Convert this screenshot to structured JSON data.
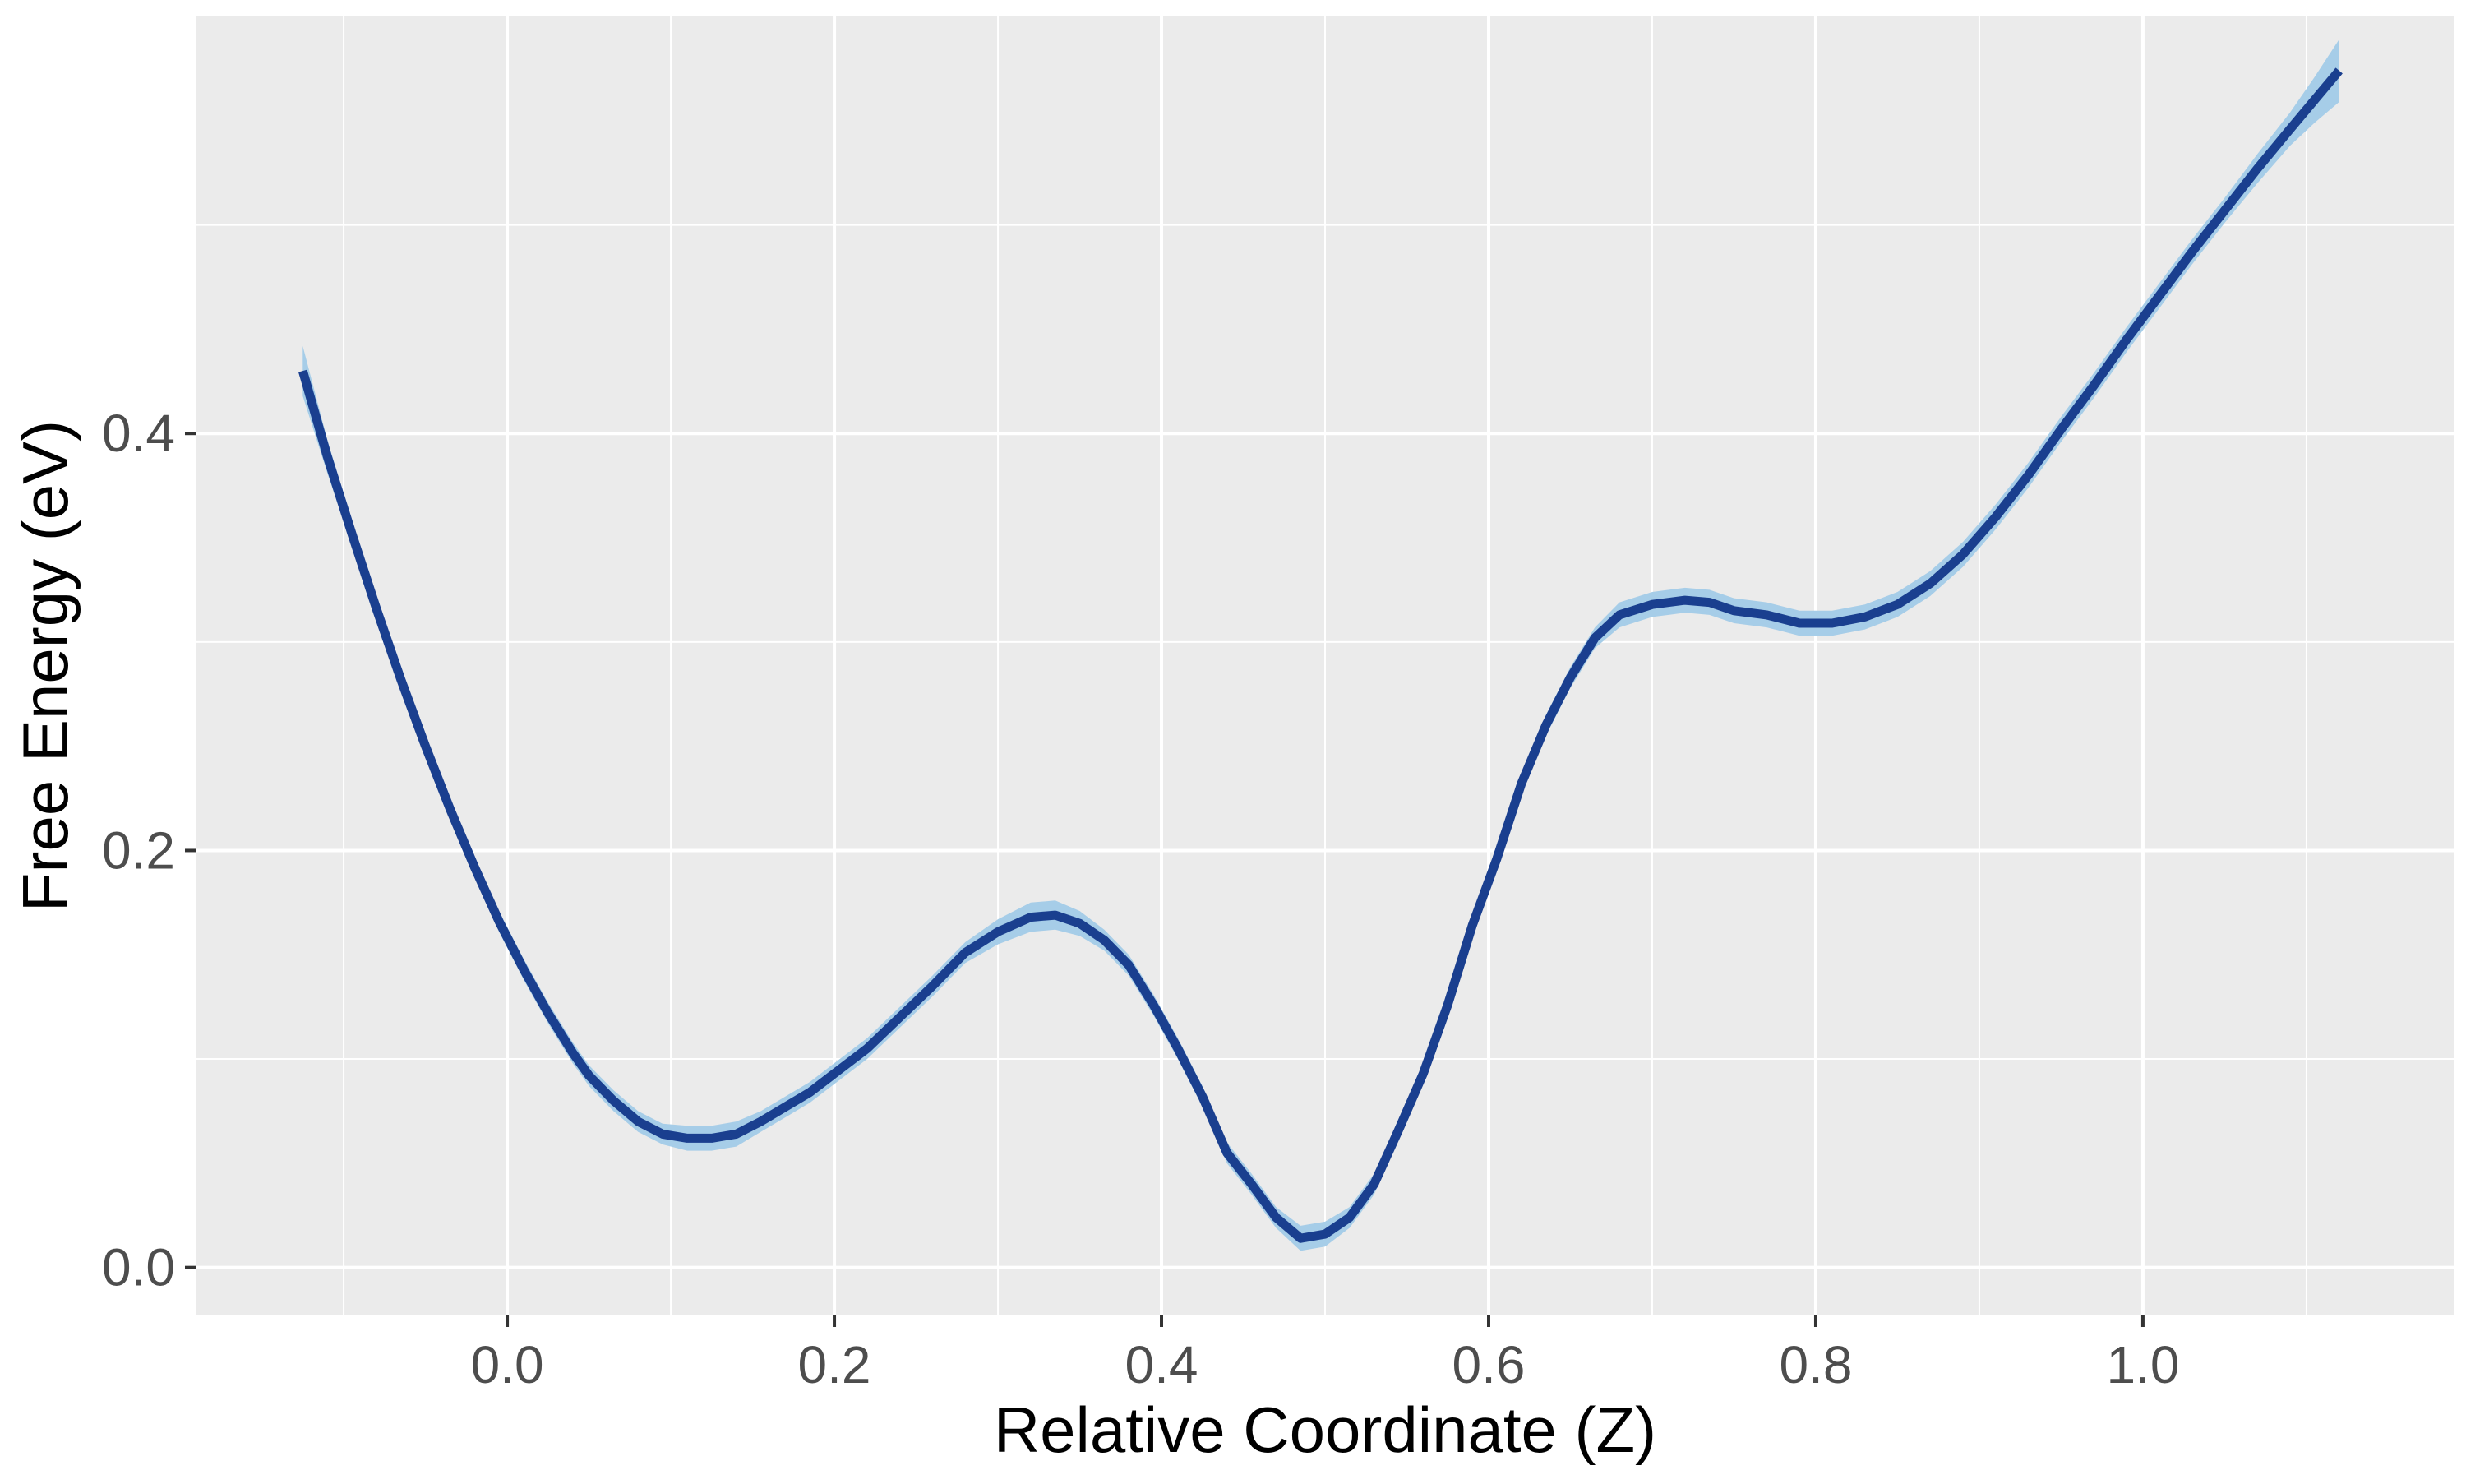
{
  "chart_data": {
    "type": "line",
    "xlabel": "Relative Coordinate (Z)",
    "ylabel": "Free Energy (eV)",
    "xlim": [
      -0.19,
      1.19
    ],
    "ylim": [
      -0.023,
      0.6
    ],
    "x_ticks": [
      0.0,
      0.2,
      0.4,
      0.6,
      0.8,
      1.0
    ],
    "x_tick_labels": [
      "0.0",
      "0.2",
      "0.4",
      "0.6",
      "0.8",
      "1.0"
    ],
    "y_ticks": [
      0.0,
      0.2,
      0.4
    ],
    "y_tick_labels": [
      "0.0",
      "0.2",
      "0.4"
    ],
    "x_minor_ticks": [
      -0.1,
      0.1,
      0.3,
      0.5,
      0.7,
      0.9,
      1.1
    ],
    "y_minor_ticks": [
      0.1,
      0.3,
      0.5
    ],
    "grid": true,
    "panel_color": "#ebebeb",
    "grid_color": "#ffffff",
    "line_color": "#1a3f8f",
    "ribbon_color": "#a6cde8",
    "series": [
      {
        "x": [
          -0.125,
          -0.11,
          -0.095,
          -0.08,
          -0.065,
          -0.05,
          -0.035,
          -0.02,
          -0.005,
          0.01,
          0.025,
          0.04,
          0.05,
          0.065,
          0.08,
          0.095,
          0.11,
          0.125,
          0.14,
          0.155,
          0.17,
          0.185,
          0.2,
          0.22,
          0.24,
          0.26,
          0.28,
          0.3,
          0.32,
          0.335,
          0.35,
          0.365,
          0.38,
          0.395,
          0.41,
          0.425,
          0.44,
          0.455,
          0.47,
          0.485,
          0.5,
          0.515,
          0.53,
          0.545,
          0.56,
          0.575,
          0.59,
          0.605,
          0.62,
          0.635,
          0.65,
          0.665,
          0.68,
          0.7,
          0.72,
          0.735,
          0.75,
          0.77,
          0.79,
          0.81,
          0.83,
          0.85,
          0.87,
          0.89,
          0.91,
          0.93,
          0.95,
          0.97,
          0.99,
          1.01,
          1.03,
          1.05,
          1.07,
          1.09,
          1.105,
          1.12
        ],
        "y": [
          0.43,
          0.389,
          0.352,
          0.316,
          0.282,
          0.25,
          0.22,
          0.192,
          0.166,
          0.143,
          0.122,
          0.103,
          0.092,
          0.08,
          0.07,
          0.064,
          0.062,
          0.062,
          0.064,
          0.07,
          0.077,
          0.084,
          0.093,
          0.105,
          0.12,
          0.135,
          0.151,
          0.161,
          0.168,
          0.169,
          0.165,
          0.157,
          0.145,
          0.126,
          0.105,
          0.082,
          0.055,
          0.04,
          0.024,
          0.014,
          0.016,
          0.024,
          0.04,
          0.066,
          0.093,
          0.126,
          0.164,
          0.196,
          0.232,
          0.26,
          0.283,
          0.302,
          0.313,
          0.318,
          0.32,
          0.319,
          0.315,
          0.313,
          0.309,
          0.309,
          0.312,
          0.318,
          0.328,
          0.342,
          0.36,
          0.38,
          0.402,
          0.423,
          0.445,
          0.466,
          0.487,
          0.507,
          0.527,
          0.546,
          0.56,
          0.574
        ],
        "ci_halfwidth": [
          0.012,
          0.008,
          0.006,
          0.005,
          0.005,
          0.005,
          0.005,
          0.005,
          0.005,
          0.005,
          0.005,
          0.005,
          0.005,
          0.005,
          0.005,
          0.005,
          0.006,
          0.006,
          0.006,
          0.005,
          0.005,
          0.005,
          0.005,
          0.005,
          0.005,
          0.005,
          0.005,
          0.006,
          0.007,
          0.007,
          0.006,
          0.005,
          0.005,
          0.005,
          0.005,
          0.005,
          0.005,
          0.005,
          0.005,
          0.006,
          0.006,
          0.005,
          0.005,
          0.005,
          0.005,
          0.005,
          0.005,
          0.005,
          0.005,
          0.005,
          0.005,
          0.005,
          0.006,
          0.006,
          0.006,
          0.006,
          0.006,
          0.006,
          0.006,
          0.006,
          0.006,
          0.006,
          0.006,
          0.006,
          0.006,
          0.006,
          0.006,
          0.006,
          0.006,
          0.006,
          0.006,
          0.006,
          0.007,
          0.008,
          0.011,
          0.015
        ]
      }
    ]
  }
}
